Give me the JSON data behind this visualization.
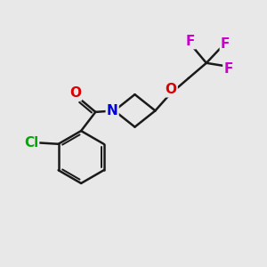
{
  "background_color": "#e8e8e8",
  "bond_color": "#1a1a1a",
  "bond_width": 1.8,
  "atom_colors": {
    "Cl": "#00aa00",
    "O": "#dd0000",
    "N": "#0000dd",
    "F": "#cc00cc"
  },
  "font_size": 11
}
